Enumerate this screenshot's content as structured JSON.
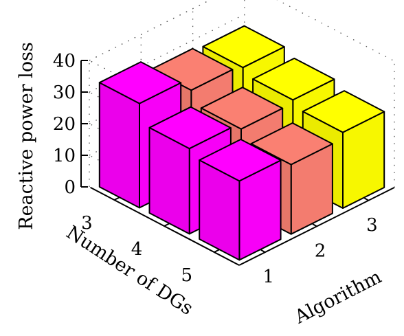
{
  "chart_data": {
    "type": "bar3d",
    "title": "",
    "zlabel": "Reactive power loss",
    "xlabel": "Algorithm",
    "ylabel": "Number of DGs",
    "x_categories": [
      "1",
      "2",
      "3"
    ],
    "y_categories": [
      "3",
      "4",
      "5"
    ],
    "z_ticks": [
      "0",
      "10",
      "20",
      "30",
      "40"
    ],
    "zlim": [
      0,
      40
    ],
    "grid": true,
    "colors": {
      "1": "#ff00ff",
      "2": "#fa8072",
      "3": "#ffff00"
    },
    "bars": [
      {
        "algorithm": "1",
        "dgs": "3",
        "value": 33
      },
      {
        "algorithm": "1",
        "dgs": "4",
        "value": 27
      },
      {
        "algorithm": "1",
        "dgs": "5",
        "value": 25
      },
      {
        "algorithm": "2",
        "dgs": "3",
        "value": 29
      },
      {
        "algorithm": "2",
        "dgs": "4",
        "value": 25
      },
      {
        "algorithm": "2",
        "dgs": "5",
        "value": 22
      },
      {
        "algorithm": "3",
        "dgs": "3",
        "value": 28
      },
      {
        "algorithm": "3",
        "dgs": "4",
        "value": 26
      },
      {
        "algorithm": "3",
        "dgs": "5",
        "value": 24
      }
    ]
  }
}
